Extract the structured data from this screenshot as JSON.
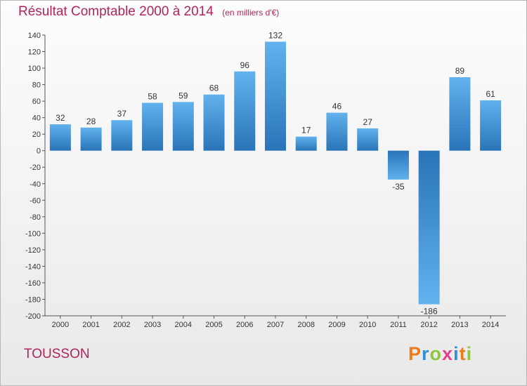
{
  "title": "Résultat Comptable 2000 à 2014",
  "unit_note": "(en milliers d'€)",
  "place": "TOUSSON",
  "logo": {
    "letters": [
      "P",
      "r",
      "o",
      "x",
      "i",
      "t",
      "i"
    ],
    "colors": [
      "#ee7a1e",
      "#2e8fd8",
      "#8dc63f",
      "#e73d8f",
      "#2e8fd8",
      "#ee7a1e",
      "#8dc63f"
    ]
  },
  "colors": {
    "title": "#b0245b",
    "bar_light": "#62b2ee",
    "bar_dark": "#2874b8",
    "axis": "#555555"
  },
  "chart_data": {
    "type": "bar",
    "title": "Résultat Comptable 2000 à 2014",
    "subtitle": "(en milliers d'€)",
    "categories": [
      "2000",
      "2001",
      "2002",
      "2003",
      "2004",
      "2005",
      "2006",
      "2007",
      "2008",
      "2009",
      "2010",
      "2011",
      "2012",
      "2013",
      "2014"
    ],
    "values": [
      32,
      28,
      37,
      58,
      59,
      68,
      96,
      132,
      17,
      46,
      27,
      -35,
      -186,
      89,
      61
    ],
    "ylim": [
      -200,
      140
    ],
    "yticks": [
      140,
      120,
      100,
      80,
      60,
      40,
      20,
      0,
      -20,
      -40,
      -60,
      -80,
      -100,
      -120,
      -140,
      -160,
      -180,
      -200
    ],
    "grid": false,
    "legend": "none"
  }
}
